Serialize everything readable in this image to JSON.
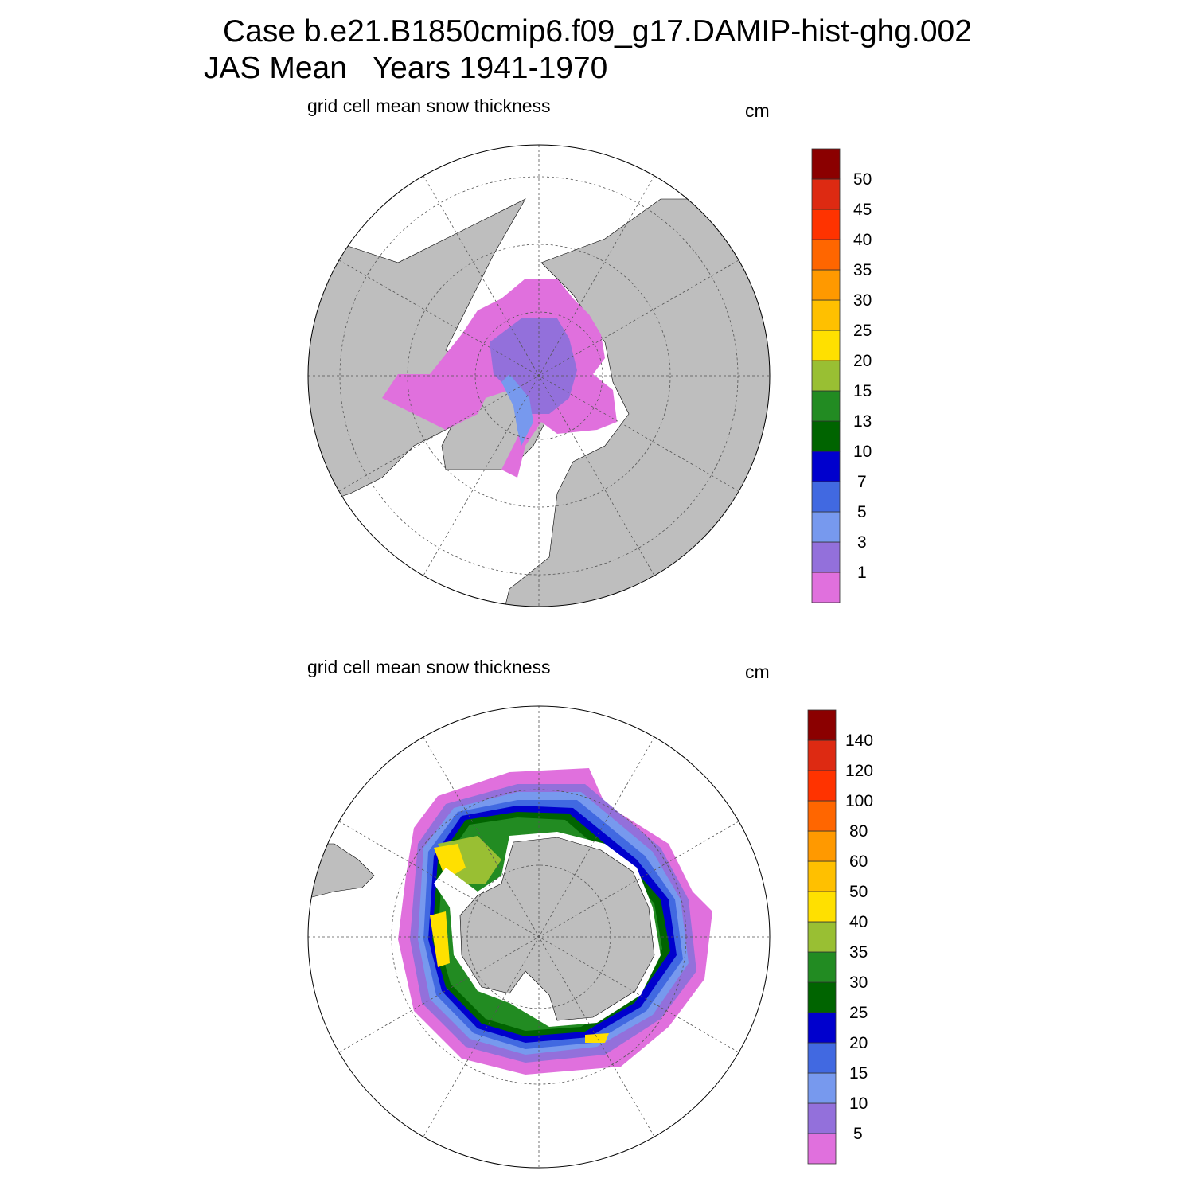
{
  "title": {
    "line1": "Case b.e21.B1850cmip6.f09_g17.DAMIP-hist-ghg.002",
    "line2": "JAS Mean   Years 1941-1970"
  },
  "colors": [
    "#E070DD",
    "#9370DB",
    "#7799EE",
    "#4169E1",
    "#0000CD",
    "#006400",
    "#228B22",
    "#99BF33",
    "#FFE000",
    "#FFC000",
    "#FF9900",
    "#FF6600",
    "#FF3300",
    "#DD2A12",
    "#8B0000"
  ],
  "land_color": "#BEBEBE",
  "panels": [
    {
      "name": "arctic",
      "projection": "north polar stereographic",
      "subtitle": "grid cell mean snow thickness",
      "units": "cm",
      "colorbar_labels": [
        "1",
        "3",
        "5",
        "7",
        "10",
        "13",
        "15",
        "20",
        "25",
        "30",
        "35",
        "40",
        "45",
        "50"
      ]
    },
    {
      "name": "antarctic",
      "projection": "south polar stereographic",
      "subtitle": "grid cell mean snow thickness",
      "units": "cm",
      "colorbar_labels": [
        "5",
        "10",
        "15",
        "20",
        "25",
        "30",
        "35",
        "40",
        "50",
        "60",
        "80",
        "100",
        "120",
        "140"
      ]
    }
  ]
}
